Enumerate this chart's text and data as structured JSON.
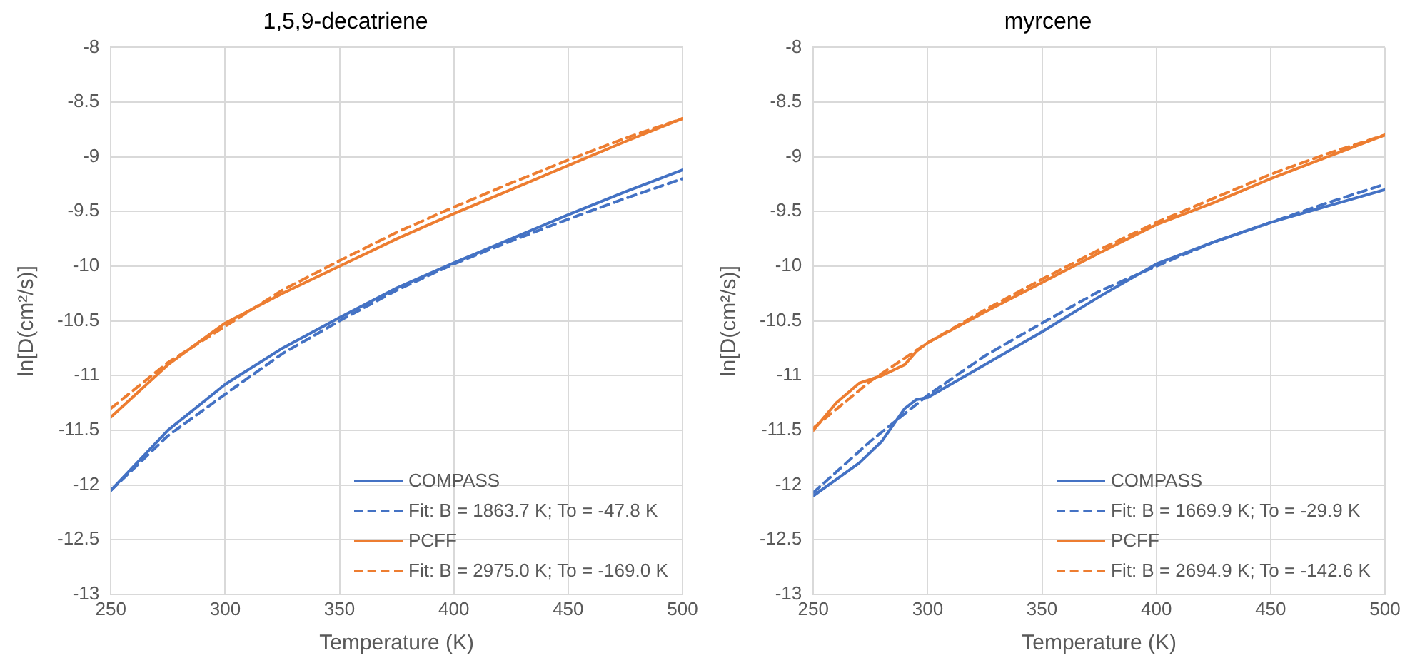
{
  "chart_data": [
    {
      "type": "line",
      "title": "1,5,9-decatriene",
      "xlabel": "Temperature (K)",
      "ylabel": "ln[D(cm²/s)]",
      "xlim": [
        250,
        500
      ],
      "xticks": [
        250,
        300,
        350,
        400,
        450,
        500
      ],
      "ylim": [
        -13,
        -8
      ],
      "yticks": [
        -8,
        -8.5,
        -9,
        -9.5,
        -10,
        -10.5,
        -11,
        -11.5,
        -12,
        -12.5,
        -13
      ],
      "grid": true,
      "legend": "bottom right",
      "marker": "none",
      "x": [
        250,
        275,
        300,
        325,
        350,
        375,
        400,
        425,
        450,
        475,
        500
      ],
      "series": [
        {
          "name": "COMPASS",
          "color": "#4472c4",
          "line_style": "solid",
          "values": [
            -12.05,
            -11.5,
            -11.08,
            -10.75,
            -10.47,
            -10.2,
            -9.97,
            -9.75,
            -9.53,
            -9.32,
            -9.12
          ]
        },
        {
          "name": "Fit: B = 1863.7 K; To = -47.8 K",
          "color": "#4472c4",
          "line_style": "dashed",
          "values": [
            -12.05,
            -11.55,
            -11.17,
            -10.8,
            -10.5,
            -10.22,
            -9.98,
            -9.77,
            -9.57,
            -9.38,
            -9.2
          ]
        },
        {
          "name": "PCFF",
          "color": "#ed7d31",
          "line_style": "solid",
          "values": [
            -11.38,
            -10.9,
            -10.52,
            -10.25,
            -10.0,
            -9.75,
            -9.52,
            -9.3,
            -9.08,
            -8.86,
            -8.65
          ]
        },
        {
          "name": "Fit: B = 2975.0 K; To = -169.0 K",
          "color": "#ed7d31",
          "line_style": "dashed",
          "values": [
            -11.3,
            -10.88,
            -10.55,
            -10.22,
            -9.95,
            -9.69,
            -9.46,
            -9.24,
            -9.03,
            -8.83,
            -8.65
          ]
        }
      ]
    },
    {
      "type": "line",
      "title": "myrcene",
      "xlabel": "Temperature (K)",
      "ylabel": "ln[D(cm²/s)]",
      "xlim": [
        250,
        500
      ],
      "xticks": [
        250,
        300,
        350,
        400,
        450,
        500
      ],
      "ylim": [
        -13,
        -8
      ],
      "yticks": [
        -8,
        -8.5,
        -9,
        -9.5,
        -10,
        -10.5,
        -11,
        -11.5,
        -12,
        -12.5,
        -13
      ],
      "grid": true,
      "legend": "bottom right",
      "marker": "none",
      "series": [
        {
          "name": "COMPASS",
          "color": "#4472c4",
          "line_style": "solid",
          "x": [
            250,
            260,
            270,
            280,
            290,
            295,
            300,
            325,
            350,
            375,
            400,
            425,
            450,
            475,
            500
          ],
          "values": [
            -12.1,
            -11.95,
            -11.8,
            -11.6,
            -11.3,
            -11.22,
            -11.2,
            -10.9,
            -10.6,
            -10.28,
            -9.98,
            -9.78,
            -9.6,
            -9.45,
            -9.3
          ]
        },
        {
          "name": "Fit: B = 1669.9 K; To = -29.9 K",
          "color": "#4472c4",
          "line_style": "dashed",
          "x": [
            250,
            275,
            300,
            325,
            350,
            375,
            400,
            425,
            450,
            475,
            500
          ],
          "values": [
            -12.07,
            -11.6,
            -11.18,
            -10.82,
            -10.52,
            -10.23,
            -10.0,
            -9.78,
            -9.6,
            -9.42,
            -9.25
          ]
        },
        {
          "name": "PCFF",
          "color": "#ed7d31",
          "line_style": "solid",
          "x": [
            250,
            260,
            270,
            280,
            290,
            295,
            300,
            325,
            350,
            375,
            400,
            425,
            450,
            475,
            500
          ],
          "values": [
            -11.5,
            -11.25,
            -11.07,
            -11.0,
            -10.9,
            -10.78,
            -10.7,
            -10.42,
            -10.15,
            -9.88,
            -9.62,
            -9.42,
            -9.2,
            -9.0,
            -8.8
          ]
        },
        {
          "name": "Fit: B = 2694.9 K; To = -142.6 K",
          "color": "#ed7d31",
          "line_style": "dashed",
          "x": [
            250,
            275,
            300,
            325,
            350,
            375,
            400,
            425,
            450,
            475,
            500
          ],
          "values": [
            -11.48,
            -11.05,
            -10.7,
            -10.4,
            -10.12,
            -9.85,
            -9.6,
            -9.38,
            -9.16,
            -8.97,
            -8.8
          ]
        }
      ]
    }
  ]
}
